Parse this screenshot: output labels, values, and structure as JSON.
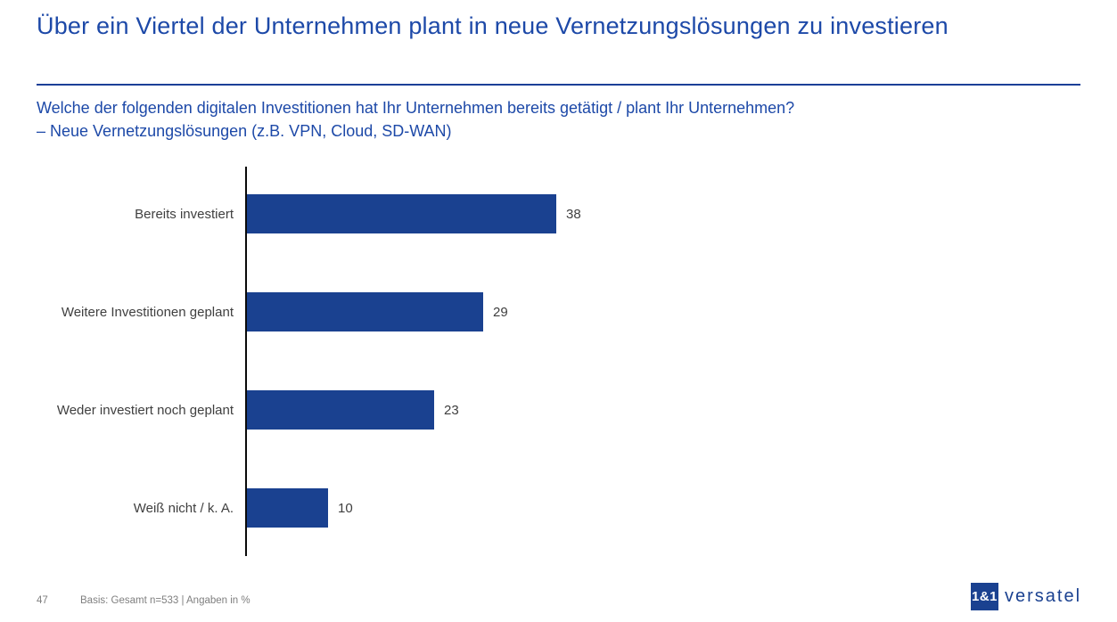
{
  "header": {
    "title": "Über ein Viertel der Unternehmen plant in neue Vernetzungslösungen zu investieren",
    "question_line1": "Welche der folgenden digitalen Investitionen hat Ihr Unternehmen bereits getätigt / plant Ihr Unternehmen?",
    "question_line2": "– Neue Vernetzungslösungen (z.B. VPN, Cloud, SD-WAN)"
  },
  "chart_data": {
    "type": "bar",
    "orientation": "horizontal",
    "categories": [
      "Bereits investiert",
      "Weitere Investitionen geplant",
      "Weder investiert noch geplant",
      "Weiß nicht / k. A."
    ],
    "values": [
      38,
      29,
      23,
      10
    ],
    "unit": "%",
    "xlim": [
      0,
      100
    ],
    "grid": false,
    "data_labels": true,
    "bar_color": "#1a4190",
    "axis_color": "#0a0a0a",
    "legend": "none",
    "title": "",
    "xlabel": "",
    "ylabel": ""
  },
  "footer": {
    "page_number": "47",
    "basis": "Basis: Gesamt n=533 | Angaben in %"
  },
  "logo": {
    "mark": "1&1",
    "name": "versatel"
  },
  "colors": {
    "title_blue": "#1d49a8",
    "rule_navy": "#1b3f97",
    "bar_navy": "#1a4190",
    "label_gray": "#3f3f3f",
    "footer_gray": "#7f7f7f"
  }
}
